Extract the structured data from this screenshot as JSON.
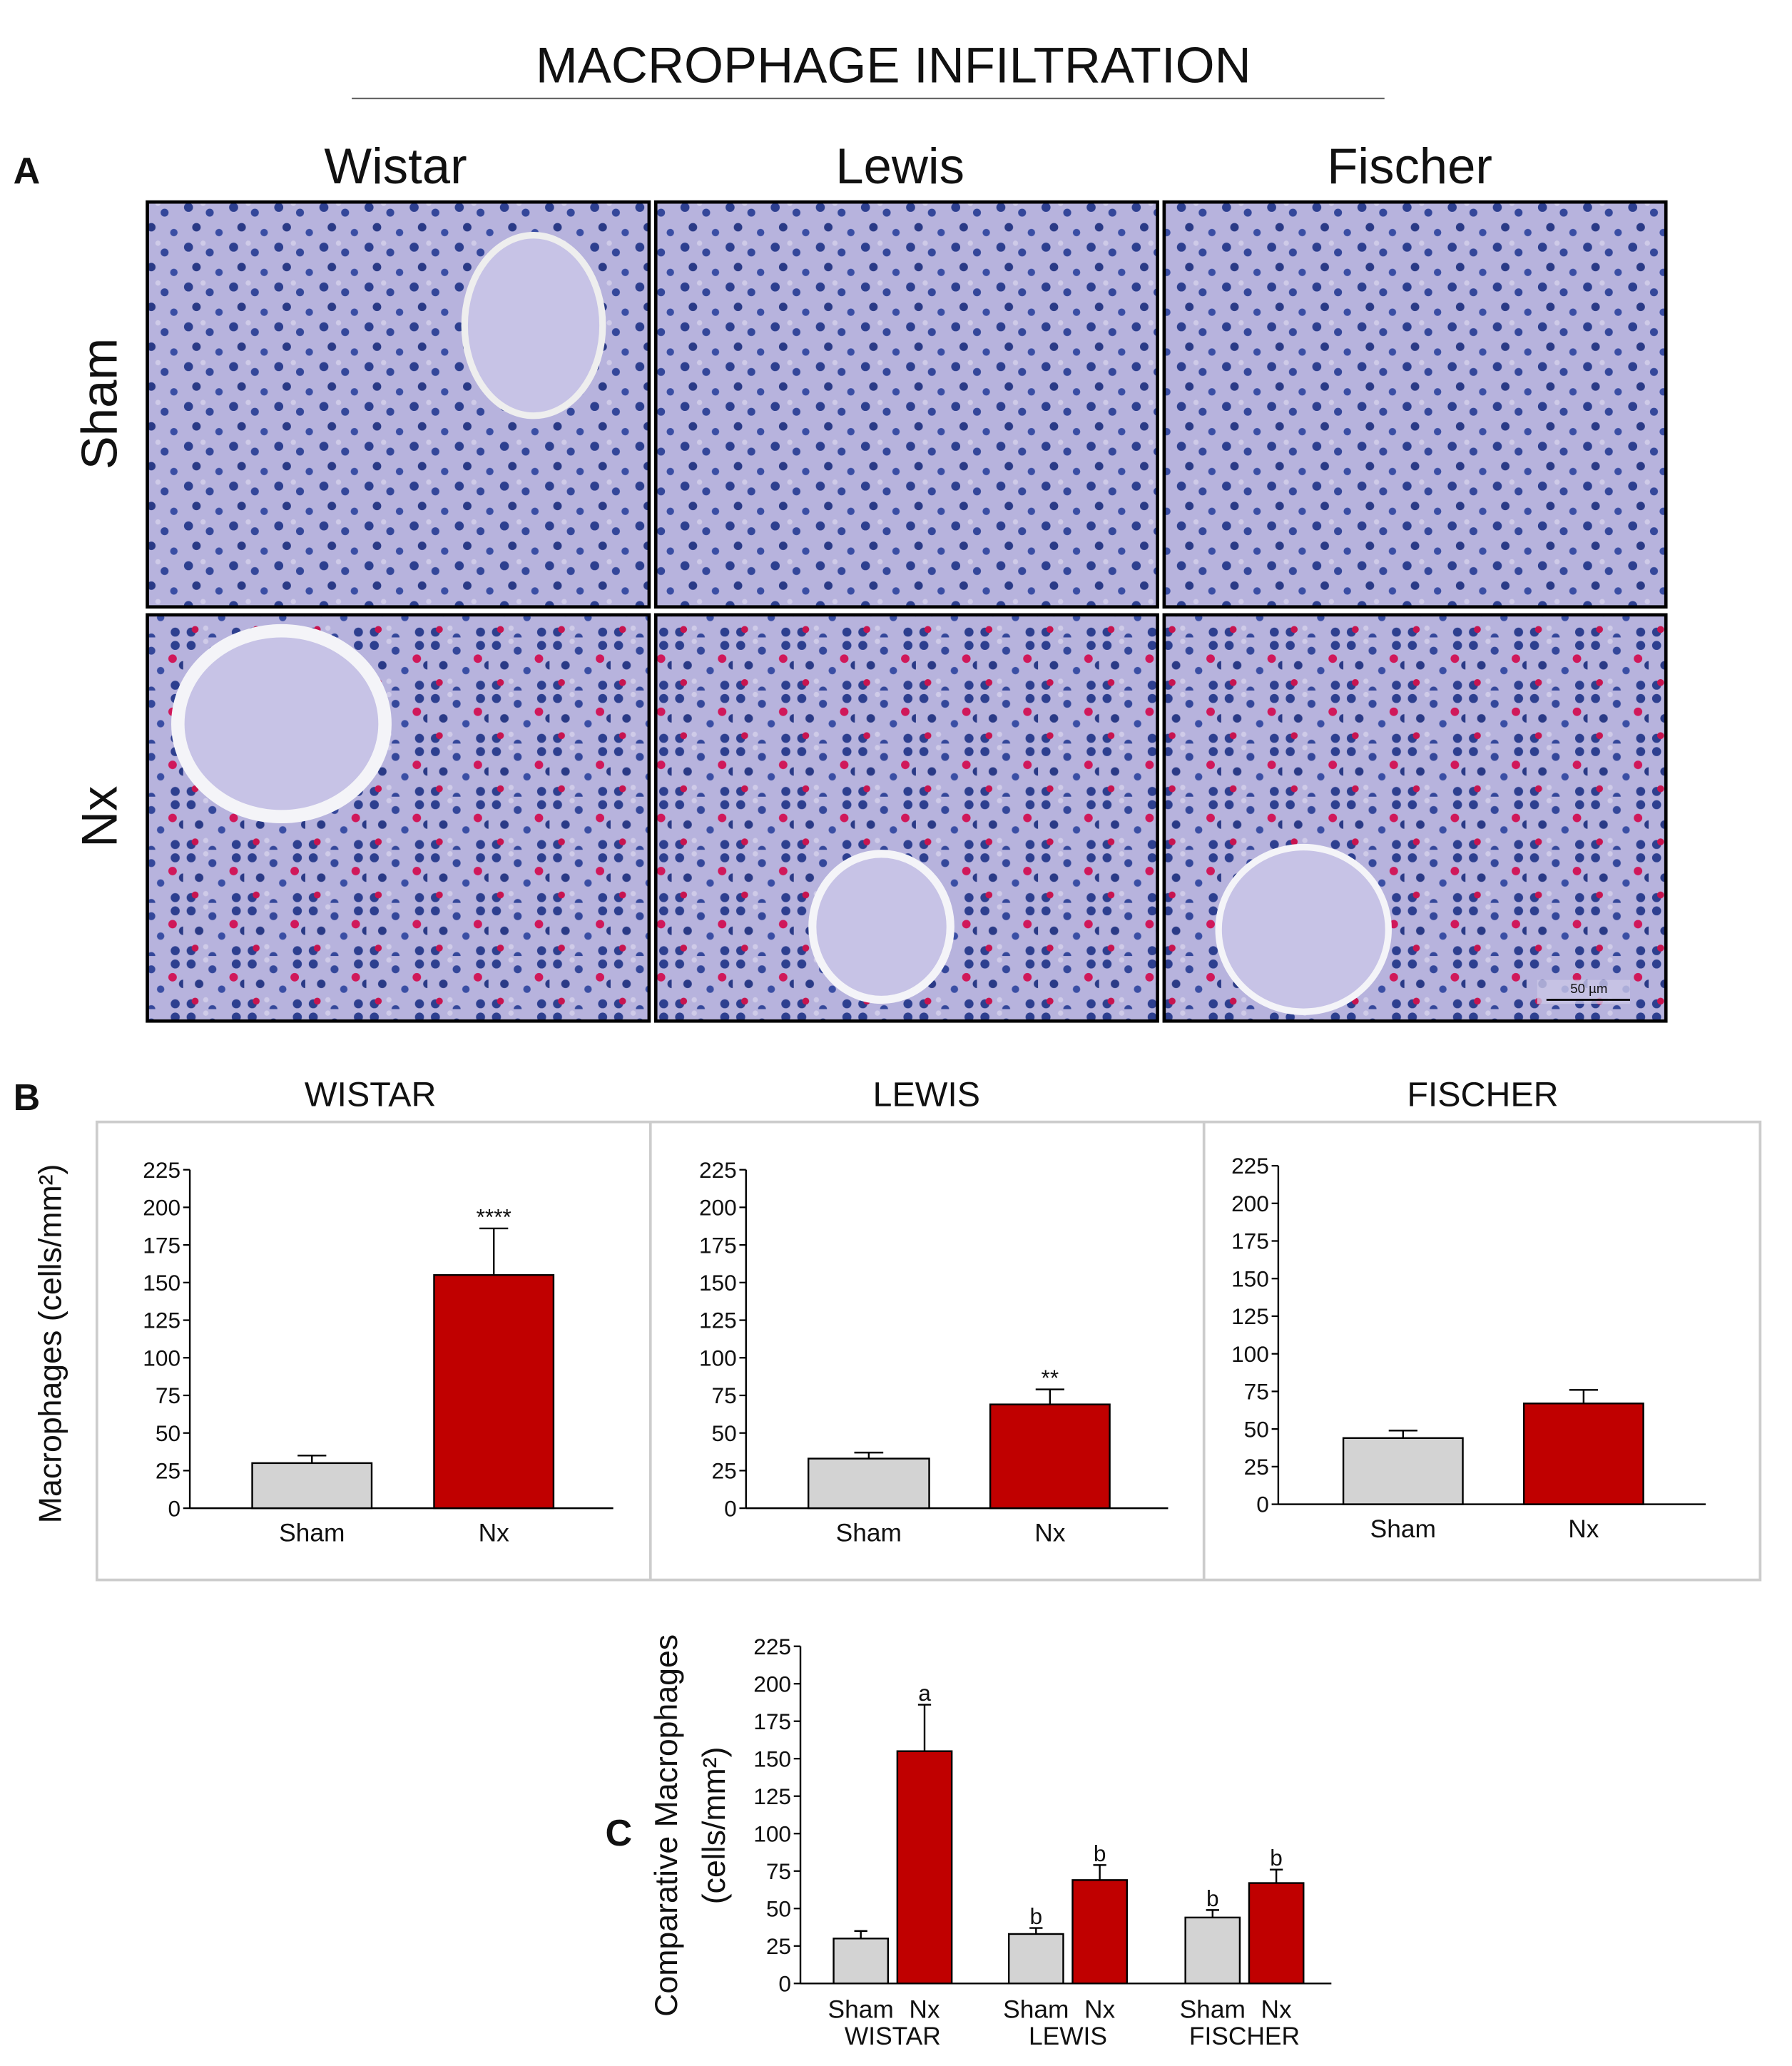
{
  "title": "MACROPHAGE INFILTRATION",
  "panel_a": {
    "label": "A",
    "columns": [
      "Wistar",
      "Lewis",
      "Fischer"
    ],
    "rows": [
      "Sham",
      "Nx"
    ],
    "scale_bar": "50 µm"
  },
  "panel_b": {
    "label": "B"
  },
  "panel_c": {
    "label": "C"
  },
  "chart_data": [
    {
      "type": "bar",
      "title": "WISTAR",
      "ylabel": "Macrophages (cells/mm²)",
      "categories": [
        "Sham",
        "Nx"
      ],
      "values": [
        30,
        155
      ],
      "errors": [
        5,
        31
      ],
      "colors": [
        "#d3d3d3",
        "#c00000"
      ],
      "annotations": [
        null,
        "****"
      ],
      "ylim": [
        0,
        225
      ],
      "yticks": [
        0,
        25,
        50,
        75,
        100,
        125,
        150,
        175,
        200,
        225
      ]
    },
    {
      "type": "bar",
      "title": "LEWIS",
      "categories": [
        "Sham",
        "Nx"
      ],
      "values": [
        33,
        69
      ],
      "errors": [
        4,
        10
      ],
      "colors": [
        "#d3d3d3",
        "#c00000"
      ],
      "annotations": [
        null,
        "**"
      ],
      "ylim": [
        0,
        225
      ],
      "yticks": [
        0,
        25,
        50,
        75,
        100,
        125,
        150,
        175,
        200,
        225
      ]
    },
    {
      "type": "bar",
      "title": "FISCHER",
      "categories": [
        "Sham",
        "Nx"
      ],
      "values": [
        44,
        67
      ],
      "errors": [
        5,
        9
      ],
      "colors": [
        "#d3d3d3",
        "#c00000"
      ],
      "annotations": [
        null,
        null
      ],
      "ylim": [
        0,
        225
      ],
      "yticks": [
        0,
        25,
        50,
        75,
        100,
        125,
        150,
        175,
        200,
        225
      ]
    },
    {
      "type": "grouped_bar",
      "ylabel": [
        "Comparative Macrophages",
        "(cells/mm²)"
      ],
      "categories": [
        "WISTAR",
        "LEWIS",
        "FISCHER"
      ],
      "series": [
        {
          "name": "Sham",
          "color": "#d3d3d3",
          "values": [
            30,
            33,
            44
          ],
          "errors": [
            5,
            4,
            5
          ],
          "annotations": [
            null,
            "b",
            "b"
          ]
        },
        {
          "name": "Nx",
          "color": "#c00000",
          "values": [
            155,
            69,
            67
          ],
          "errors": [
            31,
            10,
            9
          ],
          "annotations": [
            "a",
            "b",
            "b"
          ]
        }
      ],
      "ylim": [
        0,
        225
      ],
      "yticks": [
        0,
        25,
        50,
        75,
        100,
        125,
        150,
        175,
        200,
        225
      ]
    }
  ]
}
